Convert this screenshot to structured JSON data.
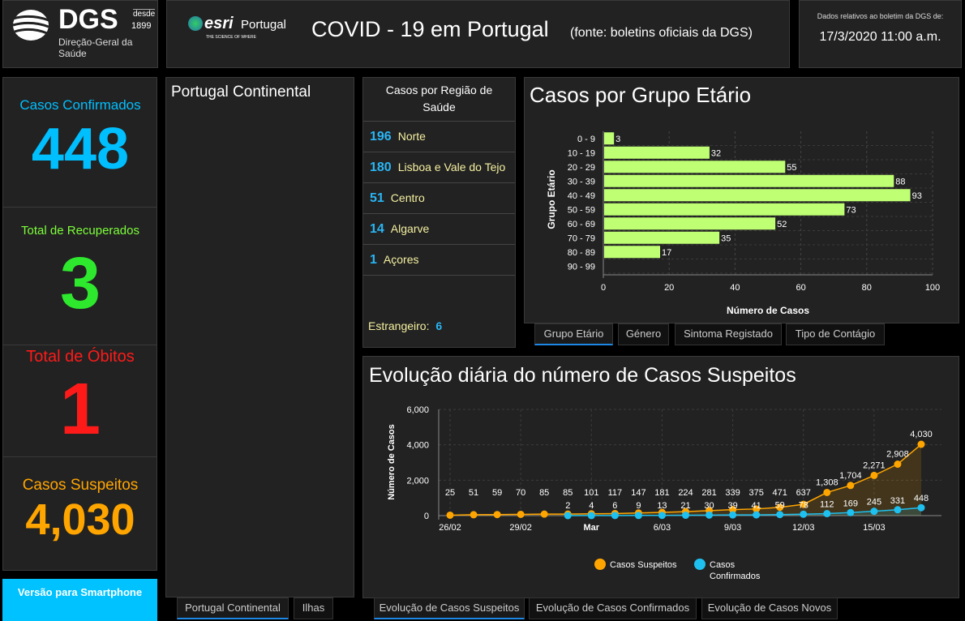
{
  "header": {
    "dgs_logo": "DGS",
    "dgs_since": "desde",
    "dgs_year": "1899",
    "dgs_name": "Direção-Geral da Saúde",
    "esri_logo": "esri",
    "esri_country": "Portugal",
    "esri_tagline": "THE SCIENCE OF WHERE",
    "title": "COVID - 19 em Portugal",
    "source": "(fonte: boletins oficiais da DGS)",
    "date_label": "Dados relativos ao boletim da DGS de:",
    "date_value": "17/3/2020 11:00 a.m."
  },
  "stats": [
    {
      "label": "Casos Confirmados",
      "value": "448",
      "color": "#00bfff"
    },
    {
      "label": "Total de Recuperados",
      "value": "3",
      "color": "#2ee82e"
    },
    {
      "label": "Total de Óbitos",
      "value": "1",
      "color": "#ff1a1a"
    },
    {
      "label": "Casos Suspeitos",
      "value": "4,030",
      "color": "#ffa500"
    }
  ],
  "smartphone_button": "Versão para Smartphone",
  "map": {
    "title": "Portugal Continental",
    "tabs": [
      "Portugal Continental",
      "Ilhas"
    ]
  },
  "regions": {
    "title": "Casos por Região de Saúde",
    "items": [
      {
        "count": "196",
        "name": "Norte"
      },
      {
        "count": "180",
        "name": "Lisboa e Vale do Tejo"
      },
      {
        "count": "51",
        "name": "Centro"
      },
      {
        "count": "14",
        "name": "Algarve"
      },
      {
        "count": "1",
        "name": "Açores"
      }
    ],
    "foreign_label": "Estrangeiro:",
    "foreign_count": "6"
  },
  "age_panel": {
    "title": "Casos por Grupo Etário",
    "tabs": [
      "Grupo Etário",
      "Género",
      "Sintoma Registado",
      "Tipo de Contágio"
    ]
  },
  "evo_panel": {
    "title": "Evolução diária do número de Casos Suspeitos",
    "tabs": [
      "Evolução de Casos Suspeitos",
      "Evolução de Casos Confirmados",
      "Evolução de Casos Novos"
    ]
  },
  "chart_data": [
    {
      "type": "bar",
      "orientation": "horizontal",
      "categories": [
        "0 - 9",
        "10 - 19",
        "20 - 29",
        "30 - 39",
        "40 - 49",
        "50 - 59",
        "60 - 69",
        "70 - 79",
        "80 - 89",
        "90 - 99"
      ],
      "values": [
        3,
        32,
        55,
        88,
        93,
        73,
        52,
        35,
        17,
        0
      ],
      "xlabel": "Número de Casos",
      "ylabel": "Grupo Etário",
      "xlim": [
        0,
        100
      ],
      "xticks": [
        0,
        20,
        40,
        60,
        80,
        100
      ],
      "grid": true,
      "color": "#bfff73"
    },
    {
      "type": "line",
      "x": [
        "26/02",
        "27/02",
        "28/02",
        "29/02",
        "1/03",
        "2/03",
        "3/03",
        "4/03",
        "5/03",
        "6/03",
        "7/03",
        "8/03",
        "9/03",
        "10/03",
        "11/03",
        "12/03",
        "13/03",
        "14/03",
        "15/03",
        "16/03",
        "17/03"
      ],
      "xtick_labels": [
        {
          "i": 0,
          "label": "26/02"
        },
        {
          "i": 3,
          "label": "29/02"
        },
        {
          "i": 6,
          "label": "Mar"
        },
        {
          "i": 9,
          "label": "6/03"
        },
        {
          "i": 12,
          "label": "9/03"
        },
        {
          "i": 15,
          "label": "12/03"
        },
        {
          "i": 18,
          "label": "15/03"
        }
      ],
      "ylabel": "Número de Casos",
      "ylim": [
        0,
        6000
      ],
      "yticks": [
        "0",
        "2,000",
        "4,000",
        "6,000"
      ],
      "grid": true,
      "legend": "bottom",
      "series": [
        {
          "name": "Casos Suspeitos",
          "color": "#ffa500",
          "values": [
            25,
            51,
            59,
            70,
            85,
            85,
            101,
            117,
            147,
            181,
            224,
            281,
            339,
            375,
            471,
            637,
            1308,
            1704,
            2271,
            2908,
            4030
          ]
        },
        {
          "name": "Casos Confirmados",
          "color": "#1ec0f0",
          "values": [
            null,
            null,
            null,
            null,
            null,
            2,
            4,
            6,
            9,
            13,
            21,
            30,
            39,
            41,
            59,
            78,
            112,
            169,
            245,
            331,
            448
          ]
        }
      ]
    }
  ]
}
